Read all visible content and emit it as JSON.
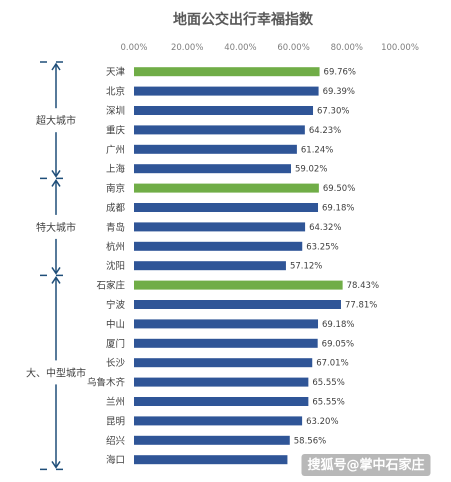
{
  "chart_data": {
    "type": "bar",
    "orientation": "horizontal",
    "title": "地面公交出行幸福指数",
    "xlim": [
      0,
      100
    ],
    "ticks": [
      "0.00%",
      "20.00%",
      "40.00%",
      "60.00%",
      "80.00%",
      "100.00%"
    ],
    "grid": false,
    "legend": "none",
    "colors": {
      "default": "#2f5597",
      "highlight": "#70ad47"
    },
    "categories": [
      "天津",
      "北京",
      "深圳",
      "重庆",
      "广州",
      "上海",
      "南京",
      "成都",
      "青岛",
      "杭州",
      "沈阳",
      "石家庄",
      "宁波",
      "中山",
      "厦门",
      "长沙",
      "乌鲁木齐",
      "兰州",
      "昆明",
      "绍兴",
      "海口"
    ],
    "values": [
      69.76,
      69.39,
      67.3,
      64.23,
      61.24,
      59.02,
      69.5,
      69.18,
      64.32,
      63.25,
      57.12,
      78.43,
      77.81,
      69.18,
      69.05,
      67.01,
      65.55,
      65.55,
      63.2,
      58.56,
      57.68
    ],
    "value_labels": [
      "69.76%",
      "69.39%",
      "67.30%",
      "64.23%",
      "61.24%",
      "59.02%",
      "69.50%",
      "69.18%",
      "64.32%",
      "63.25%",
      "57.12%",
      "78.43%",
      "77.81%",
      "69.18%",
      "69.05%",
      "67.01%",
      "65.55%",
      "65.55%",
      "63.20%",
      "58.56%",
      ""
    ],
    "highlighted": [
      "天津",
      "南京",
      "石家庄"
    ],
    "groups": [
      {
        "label": "超大城市",
        "count": 6
      },
      {
        "label": "特大城市",
        "count": 5
      },
      {
        "label": "大、中型城市",
        "count": 10
      }
    ]
  },
  "watermark": "搜狐号@掌中石家庄"
}
